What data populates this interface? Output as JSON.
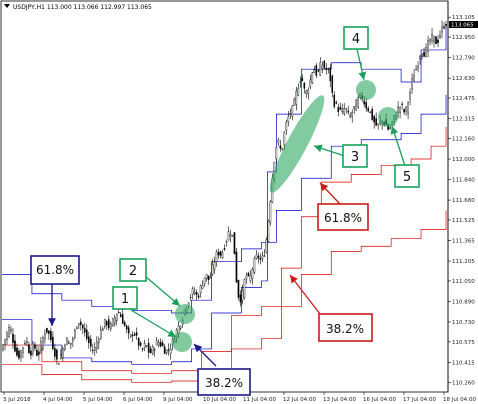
{
  "chart_window": {
    "title": "USDJPY,H1  113.000 113.066 112.997 113.065",
    "symbol_icon": "triangle-down-icon",
    "last_price_badge": "113.065"
  },
  "chart_data": {
    "type": "candlestick",
    "title": "USDJPY,H1  113.000 113.066 112.997 113.065",
    "y_axis_ticks": [
      "113.105",
      "112.950",
      "112.790",
      "112.630",
      "112.475",
      "112.315",
      "112.160",
      "112.000",
      "111.840",
      "111.680",
      "111.525",
      "111.365",
      "111.205",
      "111.050",
      "110.890",
      "110.730",
      "110.575",
      "110.415",
      "110.260"
    ],
    "x_axis_ticks": [
      "3 Jul 2018",
      "4 Jul 04:00",
      "5 Jul 04:00",
      "6 Jul 04:00",
      "9 Jul 04:00",
      "10 Jul 04:00",
      "11 Jul 04:00",
      "12 Jul 04:00",
      "13 Jul 04:00",
      "16 Jul 04:00",
      "17 Jul 04:00",
      "18 Jul 04:00"
    ],
    "ylim": [
      110.2,
      113.13
    ],
    "grid": false,
    "candle_color": "#000000",
    "price_path": [
      [
        0,
        110.53
      ],
      [
        4,
        110.62
      ],
      [
        8,
        110.7
      ],
      [
        12,
        110.55
      ],
      [
        16,
        110.45
      ],
      [
        20,
        110.52
      ],
      [
        24,
        110.6
      ],
      [
        28,
        110.48
      ],
      [
        32,
        110.55
      ],
      [
        36,
        110.46
      ],
      [
        40,
        110.58
      ],
      [
        44,
        110.68
      ],
      [
        48,
        110.62
      ],
      [
        52,
        110.52
      ],
      [
        56,
        110.4
      ],
      [
        60,
        110.5
      ],
      [
        64,
        110.6
      ],
      [
        68,
        110.55
      ],
      [
        72,
        110.62
      ],
      [
        76,
        110.75
      ],
      [
        80,
        110.7
      ],
      [
        84,
        110.62
      ],
      [
        88,
        110.55
      ],
      [
        92,
        110.5
      ],
      [
        96,
        110.6
      ],
      [
        100,
        110.68
      ],
      [
        104,
        110.74
      ],
      [
        108,
        110.68
      ],
      [
        112,
        110.75
      ],
      [
        116,
        110.82
      ],
      [
        120,
        110.76
      ],
      [
        124,
        110.68
      ],
      [
        128,
        110.6
      ],
      [
        132,
        110.66
      ],
      [
        136,
        110.58
      ],
      [
        140,
        110.5
      ],
      [
        144,
        110.56
      ],
      [
        148,
        110.48
      ],
      [
        152,
        110.53
      ],
      [
        156,
        110.58
      ],
      [
        160,
        110.55
      ],
      [
        164,
        110.5
      ],
      [
        168,
        110.52
      ],
      [
        172,
        110.6
      ],
      [
        176,
        110.68
      ],
      [
        180,
        110.74
      ],
      [
        184,
        110.85
      ],
      [
        188,
        110.92
      ],
      [
        192,
        110.98
      ],
      [
        196,
        110.92
      ],
      [
        200,
        111.02
      ],
      [
        204,
        111.1
      ],
      [
        208,
        111.05
      ],
      [
        212,
        111.18
      ],
      [
        216,
        111.28
      ],
      [
        220,
        111.25
      ],
      [
        224,
        111.35
      ],
      [
        228,
        111.45
      ],
      [
        232,
        111.38
      ],
      [
        236,
        110.95
      ],
      [
        240,
        110.9
      ],
      [
        244,
        111.1
      ],
      [
        248,
        111.05
      ],
      [
        252,
        111.18
      ],
      [
        256,
        111.25
      ],
      [
        260,
        111.2
      ],
      [
        264,
        111.3
      ],
      [
        268,
        111.6
      ],
      [
        272,
        111.95
      ],
      [
        276,
        112.15
      ],
      [
        280,
        112.05
      ],
      [
        284,
        112.25
      ],
      [
        288,
        112.35
      ],
      [
        292,
        112.4
      ],
      [
        296,
        112.55
      ],
      [
        300,
        112.65
      ],
      [
        304,
        112.5
      ],
      [
        308,
        112.58
      ],
      [
        312,
        112.72
      ],
      [
        316,
        112.65
      ],
      [
        320,
        112.75
      ],
      [
        324,
        112.7
      ],
      [
        328,
        112.68
      ],
      [
        332,
        112.45
      ],
      [
        336,
        112.4
      ],
      [
        340,
        112.36
      ],
      [
        344,
        112.4
      ],
      [
        348,
        112.32
      ],
      [
        352,
        112.38
      ],
      [
        356,
        112.45
      ],
      [
        360,
        112.5
      ],
      [
        364,
        112.42
      ],
      [
        368,
        112.38
      ],
      [
        372,
        112.3
      ],
      [
        376,
        112.25
      ],
      [
        380,
        112.3
      ],
      [
        384,
        112.28
      ],
      [
        388,
        112.22
      ],
      [
        392,
        112.3
      ],
      [
        396,
        112.38
      ],
      [
        400,
        112.42
      ],
      [
        404,
        112.35
      ],
      [
        408,
        112.48
      ],
      [
        412,
        112.65
      ],
      [
        416,
        112.72
      ],
      [
        420,
        112.85
      ],
      [
        424,
        112.82
      ],
      [
        428,
        112.92
      ],
      [
        432,
        112.95
      ],
      [
        436,
        112.9
      ],
      [
        440,
        113.0
      ],
      [
        444,
        113.06
      ]
    ],
    "indicator_lines": [
      {
        "color": "#0000cc",
        "role": "channel-upper",
        "path": [
          [
            0,
            111.1
          ],
          [
            30,
            110.95
          ],
          [
            60,
            110.9
          ],
          [
            90,
            110.85
          ],
          [
            130,
            110.82
          ],
          [
            170,
            110.8
          ],
          [
            190,
            110.9
          ],
          [
            210,
            111.2
          ],
          [
            240,
            111.3
          ],
          [
            260,
            111.35
          ],
          [
            266,
            111.9
          ],
          [
            275,
            112.35
          ],
          [
            300,
            112.7
          ],
          [
            330,
            112.75
          ],
          [
            360,
            112.7
          ],
          [
            400,
            112.6
          ],
          [
            420,
            112.85
          ],
          [
            445,
            113.05
          ]
        ]
      },
      {
        "color": "#0000cc",
        "role": "channel-lower",
        "path": [
          [
            0,
            110.75
          ],
          [
            30,
            110.55
          ],
          [
            60,
            110.45
          ],
          [
            90,
            110.42
          ],
          [
            130,
            110.4
          ],
          [
            170,
            110.42
          ],
          [
            190,
            110.52
          ],
          [
            210,
            110.8
          ],
          [
            240,
            111.0
          ],
          [
            260,
            111.05
          ],
          [
            266,
            111.35
          ],
          [
            275,
            111.6
          ],
          [
            300,
            111.85
          ],
          [
            330,
            112.1
          ],
          [
            360,
            112.15
          ],
          [
            400,
            112.2
          ],
          [
            420,
            112.35
          ],
          [
            445,
            112.5
          ]
        ]
      },
      {
        "color": "#dd0000",
        "role": "fib-61.8",
        "path": [
          [
            0,
            110.55
          ],
          [
            40,
            110.42
          ],
          [
            80,
            110.35
          ],
          [
            130,
            110.33
          ],
          [
            170,
            110.35
          ],
          [
            200,
            110.5
          ],
          [
            230,
            110.78
          ],
          [
            260,
            110.85
          ],
          [
            280,
            111.15
          ],
          [
            300,
            111.55
          ],
          [
            320,
            111.82
          ],
          [
            350,
            111.88
          ],
          [
            380,
            111.95
          ],
          [
            410,
            112.0
          ],
          [
            430,
            112.1
          ],
          [
            445,
            112.25
          ]
        ]
      },
      {
        "color": "#dd0000",
        "role": "fib-38.2",
        "path": [
          [
            0,
            110.4
          ],
          [
            40,
            110.32
          ],
          [
            80,
            110.28
          ],
          [
            130,
            110.26
          ],
          [
            170,
            110.27
          ],
          [
            200,
            110.35
          ],
          [
            230,
            110.52
          ],
          [
            260,
            110.6
          ],
          [
            280,
            110.85
          ],
          [
            300,
            111.1
          ],
          [
            330,
            111.28
          ],
          [
            360,
            111.32
          ],
          [
            390,
            111.38
          ],
          [
            420,
            111.45
          ],
          [
            445,
            111.6
          ]
        ]
      }
    ]
  },
  "annotations": {
    "box_fib_618_left": "61.8%",
    "box_fib_382_bottom": "38.2%",
    "box_fib_618_right": "61.8%",
    "box_fib_382_right": "38.2%",
    "marker_1": "1",
    "marker_2": "2",
    "marker_3": "3",
    "marker_4": "4",
    "marker_5": "5"
  },
  "colors": {
    "blue_box": "#1a1a8c",
    "red_box": "#cc1a1a",
    "green_box": "#1aa15a",
    "highlight_fill": "#2ea860"
  }
}
